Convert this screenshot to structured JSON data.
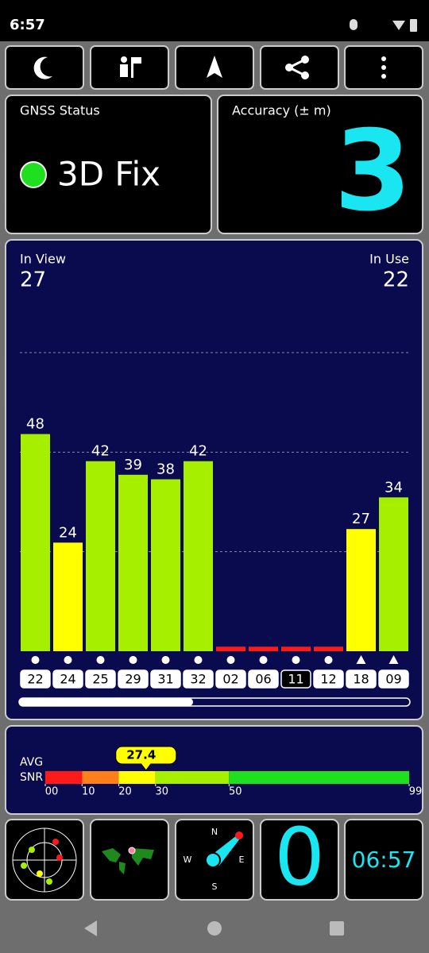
{
  "status_bar": {
    "time": "6:57"
  },
  "gnss_status": {
    "title": "GNSS Status",
    "fix": "3D Fix"
  },
  "accuracy": {
    "title": "Accuracy (± m)",
    "value": "3"
  },
  "satellites": {
    "in_view_label": "In View",
    "in_view": "27",
    "in_use_label": "In Use",
    "in_use": "22"
  },
  "chart_data": {
    "type": "bar",
    "categories": [
      "22",
      "24",
      "25",
      "29",
      "31",
      "32",
      "02",
      "06",
      "11",
      "12",
      "18",
      "09"
    ],
    "values": [
      48,
      24,
      42,
      39,
      38,
      42,
      1,
      1,
      1,
      1,
      27,
      34
    ],
    "value_labels": [
      "48",
      "24",
      "42",
      "39",
      "38",
      "42",
      null,
      null,
      null,
      null,
      "27",
      "34"
    ],
    "colors": [
      "#a6ef00",
      "#ffff00",
      "#a6ef00",
      "#a6ef00",
      "#a6ef00",
      "#a6ef00",
      "#ff1a1a",
      "#ff1a1a",
      "#ff1a1a",
      "#ff1a1a",
      "#ffff00",
      "#a6ef00"
    ],
    "shapes": [
      "circle",
      "circle",
      "circle",
      "circle",
      "circle",
      "circle",
      "circle",
      "circle",
      "circle",
      "circle",
      "triangle",
      "triangle"
    ],
    "used": [
      true,
      true,
      true,
      true,
      true,
      true,
      true,
      true,
      false,
      true,
      true,
      true
    ],
    "ylim": [
      0,
      66
    ],
    "gridlines": [
      22,
      44,
      66
    ]
  },
  "snr": {
    "avg_label": "AVG",
    "snr_label": "SNR",
    "value": 27.4,
    "value_label": "27.4",
    "range": [
      0,
      99
    ],
    "segments": [
      {
        "from": 0,
        "to": 10,
        "color": "#ff1a1a"
      },
      {
        "from": 10,
        "to": 20,
        "color": "#ff7f1a"
      },
      {
        "from": 20,
        "to": 30,
        "color": "#ffff00"
      },
      {
        "from": 30,
        "to": 50,
        "color": "#a6ef00"
      },
      {
        "from": 50,
        "to": 99,
        "color": "#1ee01e"
      }
    ],
    "ticks": [
      {
        "value": 0,
        "label": "00"
      },
      {
        "value": 10,
        "label": "10"
      },
      {
        "value": 20,
        "label": "20"
      },
      {
        "value": 30,
        "label": "30"
      },
      {
        "value": 50,
        "label": "50"
      },
      {
        "value": 99,
        "label": "99"
      }
    ]
  },
  "bottom": {
    "compass": {
      "n": "N",
      "e": "E",
      "s": "S",
      "w": "W"
    },
    "count": "0",
    "clock": "06:57"
  }
}
